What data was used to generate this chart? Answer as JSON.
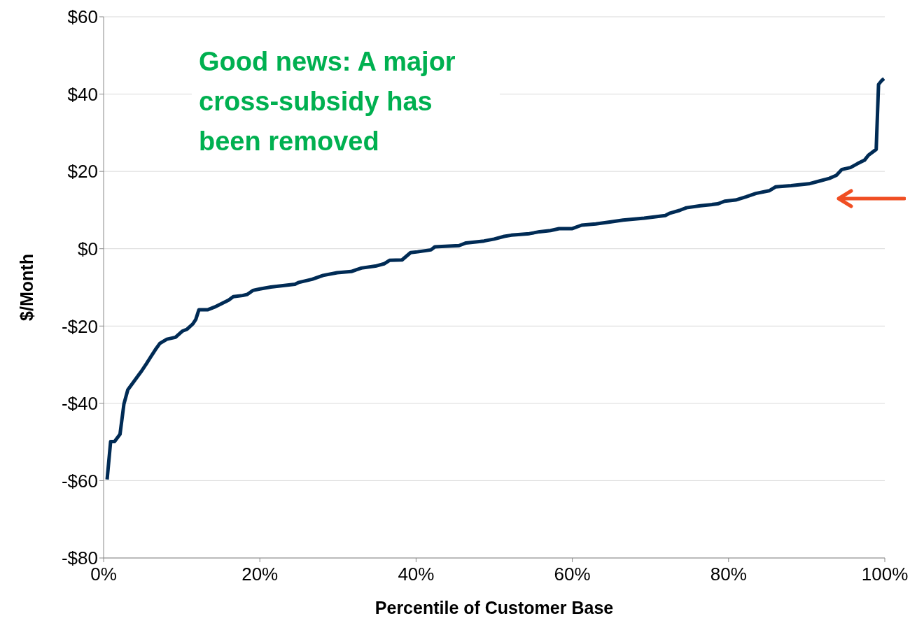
{
  "chart_data": {
    "type": "line",
    "xlabel": "Percentile of Customer Base",
    "ylabel": "$/Month",
    "annotations": [
      "Good news: A major cross-subsidy has been removed"
    ],
    "x": [
      0.45,
      0.9,
      1.4,
      2.1,
      2.6,
      3.1,
      3.9,
      4.8,
      5.5,
      5.9,
      6.6,
      7.2,
      8.1,
      9.2,
      10.1,
      10.7,
      11.4,
      11.8,
      12.2,
      13.3,
      14.2,
      16.0,
      16.6,
      17.8,
      18.4,
      19.1,
      20.0,
      21.4,
      24.5,
      25.0,
      26.7,
      28.1,
      29.9,
      31.7,
      33.0,
      34.8,
      35.9,
      36.6,
      38.2,
      39.3,
      40.2,
      41.9,
      42.4,
      45.5,
      46.4,
      48.7,
      50.0,
      51.3,
      52.2,
      54.5,
      55.8,
      57.2,
      58.3,
      60.0,
      61.2,
      63.0,
      64.8,
      66.5,
      69.2,
      71.9,
      72.5,
      73.7,
      74.6,
      76.4,
      78.6,
      79.5,
      80.9,
      82.2,
      83.5,
      85.2,
      86.0,
      88.0,
      90.3,
      91.6,
      92.9,
      93.8,
      94.5,
      95.6,
      96.5,
      97.4,
      97.9,
      98.9,
      99.2,
      99.6,
      99.9
    ],
    "series": [
      {
        "color": "#002b55",
        "values": [
          -59.7,
          -49.9,
          -49.9,
          -48,
          -40.2,
          -36.5,
          -34.3,
          -31.8,
          -29.7,
          -28.4,
          -26.2,
          -24.5,
          -23.4,
          -22.9,
          -21.3,
          -20.8,
          -19.5,
          -18.3,
          -15.8,
          -15.8,
          -15.1,
          -13.3,
          -12.4,
          -12.1,
          -11.8,
          -10.8,
          -10.4,
          -9.9,
          -9.2,
          -8.7,
          -7.9,
          -6.9,
          -6.2,
          -5.9,
          -5.0,
          -4.5,
          -3.9,
          -3.0,
          -2.9,
          -1.0,
          -0.8,
          -0.3,
          0.5,
          0.8,
          1.5,
          2.0,
          2.5,
          3.2,
          3.5,
          3.9,
          4.4,
          4.7,
          5.2,
          5.2,
          6.1,
          6.4,
          6.9,
          7.4,
          7.9,
          8.6,
          9.2,
          9.9,
          10.6,
          11.1,
          11.6,
          12.3,
          12.6,
          13.4,
          14.3,
          15.0,
          16.0,
          16.3,
          16.8,
          17.5,
          18.2,
          19.0,
          20.5,
          21.0,
          22.0,
          22.9,
          24.2,
          25.7,
          42.5,
          43.5,
          44.0
        ]
      }
    ],
    "xlim": [
      0,
      100
    ],
    "xticks": [
      {
        "value": 0,
        "label": "0%"
      },
      {
        "value": 20,
        "label": "20%"
      },
      {
        "value": 40,
        "label": "40%"
      },
      {
        "value": 60,
        "label": "60%"
      },
      {
        "value": 80,
        "label": "80%"
      },
      {
        "value": 100,
        "label": "100%"
      }
    ],
    "ylim": [
      -80,
      60
    ],
    "yticks": [
      {
        "value": -80,
        "label": "-$80"
      },
      {
        "value": -60,
        "label": "-$60"
      },
      {
        "value": -40,
        "label": "-$40"
      },
      {
        "value": -20,
        "label": "-$20"
      },
      {
        "value": 0,
        "label": "$0"
      },
      {
        "value": 20,
        "label": "$20"
      },
      {
        "value": 40,
        "label": "$40"
      },
      {
        "value": 60,
        "label": "$60"
      }
    ],
    "grid": "y",
    "legend": false,
    "marker": "none",
    "line_style": "solid"
  }
}
